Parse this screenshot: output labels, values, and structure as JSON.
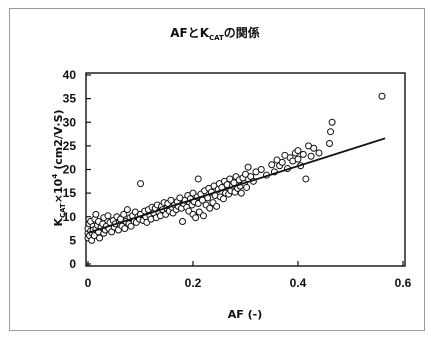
{
  "chart_data": {
    "type": "scatter",
    "title": {
      "prefix": "AFと",
      "k": "K",
      "sub": "CAT",
      "suffix": "の関係"
    },
    "xlabel": "AF (-)",
    "ylabel": {
      "k": "K",
      "sub": "CAT",
      "mid": "×10",
      "sup": "4",
      "unit": "(cm2/V·S)"
    },
    "xlim": [
      0,
      0.6
    ],
    "ylim": [
      0,
      40
    ],
    "x_ticks": [
      0,
      0.2,
      0.4,
      0.6
    ],
    "x_tick_labels": [
      "0",
      "0.2",
      "0.4",
      "0.6"
    ],
    "y_ticks": [
      0,
      5,
      10,
      15,
      20,
      25,
      30,
      35,
      40
    ],
    "y_tick_labels": [
      "0",
      "5",
      "10",
      "15",
      "20",
      "25",
      "30",
      "35",
      "40"
    ],
    "grid": false,
    "legend": "none",
    "marker": "open-circle",
    "trendline": {
      "x": [
        0,
        0.566
      ],
      "y": [
        6.6,
        26.6
      ]
    },
    "points": [
      [
        0.0,
        5.5
      ],
      [
        0.0,
        6.5
      ],
      [
        0.0,
        7.5
      ],
      [
        0.002,
        8.5
      ],
      [
        0.003,
        6.0
      ],
      [
        0.005,
        7.0
      ],
      [
        0.005,
        9.0
      ],
      [
        0.007,
        5.0
      ],
      [
        0.008,
        6.5
      ],
      [
        0.01,
        8.0
      ],
      [
        0.01,
        7.2
      ],
      [
        0.012,
        6.0
      ],
      [
        0.013,
        9.5
      ],
      [
        0.015,
        10.5
      ],
      [
        0.015,
        7.5
      ],
      [
        0.018,
        8.2
      ],
      [
        0.02,
        6.8
      ],
      [
        0.02,
        9.0
      ],
      [
        0.022,
        5.5
      ],
      [
        0.025,
        7.8
      ],
      [
        0.028,
        8.5
      ],
      [
        0.03,
        6.5
      ],
      [
        0.03,
        9.8
      ],
      [
        0.033,
        7.2
      ],
      [
        0.035,
        8.0
      ],
      [
        0.038,
        10.2
      ],
      [
        0.04,
        7.5
      ],
      [
        0.042,
        8.8
      ],
      [
        0.045,
        6.8
      ],
      [
        0.048,
        9.2
      ],
      [
        0.05,
        7.8
      ],
      [
        0.052,
        8.5
      ],
      [
        0.055,
        10.0
      ],
      [
        0.058,
        7.2
      ],
      [
        0.06,
        8.8
      ],
      [
        0.062,
        9.5
      ],
      [
        0.065,
        8.0
      ],
      [
        0.068,
        10.5
      ],
      [
        0.07,
        7.5
      ],
      [
        0.072,
        9.0
      ],
      [
        0.075,
        11.5
      ],
      [
        0.078,
        8.5
      ],
      [
        0.08,
        9.8
      ],
      [
        0.082,
        8.0
      ],
      [
        0.085,
        10.2
      ],
      [
        0.088,
        9.0
      ],
      [
        0.09,
        11.0
      ],
      [
        0.092,
        8.8
      ],
      [
        0.095,
        10.0
      ],
      [
        0.098,
        9.5
      ],
      [
        0.1,
        17.0
      ],
      [
        0.1,
        10.5
      ],
      [
        0.105,
        9.2
      ],
      [
        0.108,
        11.2
      ],
      [
        0.11,
        10.0
      ],
      [
        0.112,
        8.8
      ],
      [
        0.115,
        11.5
      ],
      [
        0.118,
        10.2
      ],
      [
        0.12,
        9.5
      ],
      [
        0.122,
        12.0
      ],
      [
        0.125,
        10.8
      ],
      [
        0.128,
        11.8
      ],
      [
        0.13,
        9.8
      ],
      [
        0.132,
        12.5
      ],
      [
        0.135,
        11.0
      ],
      [
        0.138,
        10.2
      ],
      [
        0.14,
        12.2
      ],
      [
        0.142,
        11.5
      ],
      [
        0.145,
        13.0
      ],
      [
        0.148,
        10.5
      ],
      [
        0.15,
        11.8
      ],
      [
        0.152,
        12.8
      ],
      [
        0.155,
        11.2
      ],
      [
        0.158,
        13.5
      ],
      [
        0.16,
        12.0
      ],
      [
        0.162,
        10.8
      ],
      [
        0.165,
        12.5
      ],
      [
        0.168,
        11.5
      ],
      [
        0.17,
        13.2
      ],
      [
        0.172,
        12.2
      ],
      [
        0.175,
        14.0
      ],
      [
        0.178,
        11.8
      ],
      [
        0.18,
        9.0
      ],
      [
        0.182,
        12.8
      ],
      [
        0.185,
        13.5
      ],
      [
        0.188,
        12.0
      ],
      [
        0.19,
        14.5
      ],
      [
        0.192,
        11.2
      ],
      [
        0.195,
        13.8
      ],
      [
        0.198,
        12.5
      ],
      [
        0.2,
        15.0
      ],
      [
        0.2,
        10.5
      ],
      [
        0.202,
        13.2
      ],
      [
        0.205,
        9.8
      ],
      [
        0.208,
        14.2
      ],
      [
        0.21,
        18.0
      ],
      [
        0.21,
        12.8
      ],
      [
        0.212,
        11.0
      ],
      [
        0.215,
        14.8
      ],
      [
        0.218,
        13.5
      ],
      [
        0.22,
        10.2
      ],
      [
        0.222,
        15.5
      ],
      [
        0.225,
        12.5
      ],
      [
        0.228,
        14.0
      ],
      [
        0.23,
        16.0
      ],
      [
        0.232,
        11.8
      ],
      [
        0.235,
        15.2
      ],
      [
        0.238,
        13.0
      ],
      [
        0.24,
        16.5
      ],
      [
        0.242,
        14.5
      ],
      [
        0.245,
        12.2
      ],
      [
        0.248,
        15.8
      ],
      [
        0.25,
        17.0
      ],
      [
        0.252,
        14.2
      ],
      [
        0.255,
        16.2
      ],
      [
        0.258,
        13.8
      ],
      [
        0.26,
        17.5
      ],
      [
        0.262,
        15.0
      ],
      [
        0.265,
        16.8
      ],
      [
        0.268,
        14.8
      ],
      [
        0.27,
        18.0
      ],
      [
        0.272,
        15.5
      ],
      [
        0.275,
        16.5
      ],
      [
        0.278,
        17.2
      ],
      [
        0.28,
        15.2
      ],
      [
        0.282,
        18.5
      ],
      [
        0.285,
        16.0
      ],
      [
        0.288,
        17.8
      ],
      [
        0.29,
        16.5
      ],
      [
        0.292,
        15.0
      ],
      [
        0.295,
        18.2
      ],
      [
        0.298,
        17.0
      ],
      [
        0.3,
        19.0
      ],
      [
        0.302,
        16.2
      ],
      [
        0.305,
        20.5
      ],
      [
        0.31,
        18.5
      ],
      [
        0.315,
        17.5
      ],
      [
        0.32,
        19.5
      ],
      [
        0.33,
        20.0
      ],
      [
        0.34,
        18.8
      ],
      [
        0.35,
        21.0
      ],
      [
        0.355,
        19.5
      ],
      [
        0.36,
        22.0
      ],
      [
        0.365,
        20.8
      ],
      [
        0.37,
        21.5
      ],
      [
        0.375,
        23.0
      ],
      [
        0.38,
        20.2
      ],
      [
        0.385,
        22.5
      ],
      [
        0.39,
        21.8
      ],
      [
        0.395,
        23.5
      ],
      [
        0.4,
        22.2
      ],
      [
        0.4,
        24.0
      ],
      [
        0.405,
        20.8
      ],
      [
        0.41,
        23.2
      ],
      [
        0.415,
        18.0
      ],
      [
        0.42,
        25.0
      ],
      [
        0.425,
        22.8
      ],
      [
        0.43,
        24.5
      ],
      [
        0.44,
        23.5
      ],
      [
        0.46,
        25.5
      ],
      [
        0.462,
        28.0
      ],
      [
        0.465,
        30.0
      ],
      [
        0.56,
        35.5
      ]
    ],
    "colors": {
      "marker_stroke": "#111111",
      "marker_fill": "#ffffff",
      "line": "#111111",
      "frame": "#111111"
    }
  }
}
